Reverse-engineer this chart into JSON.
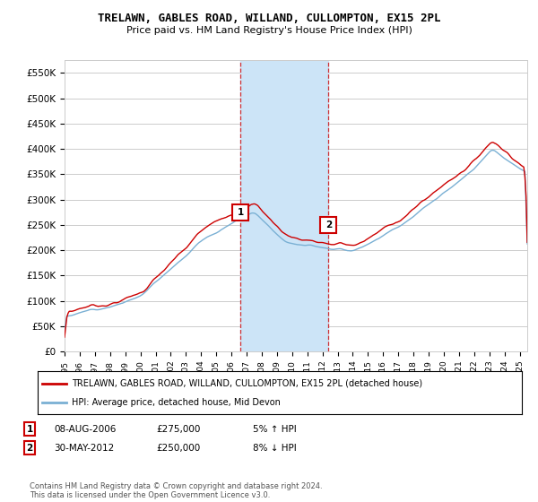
{
  "title": "TRELAWN, GABLES ROAD, WILLAND, CULLOMPTON, EX15 2PL",
  "subtitle": "Price paid vs. HM Land Registry's House Price Index (HPI)",
  "ylim": [
    0,
    575000
  ],
  "yticks": [
    0,
    50000,
    100000,
    150000,
    200000,
    250000,
    300000,
    350000,
    400000,
    450000,
    500000,
    550000
  ],
  "ytick_labels": [
    "£0",
    "£50K",
    "£100K",
    "£150K",
    "£200K",
    "£250K",
    "£300K",
    "£350K",
    "£400K",
    "£450K",
    "£500K",
    "£550K"
  ],
  "xlim_start": 1995.0,
  "xlim_end": 2025.5,
  "sale1_date": 2006.6,
  "sale1_price": 275000,
  "sale1_label": "1",
  "sale2_date": 2012.4,
  "sale2_price": 250000,
  "sale2_label": "2",
  "shade_color": "#cce4f7",
  "red_color": "#cc0000",
  "blue_color": "#7ab0d4",
  "grid_color": "#cccccc",
  "bg_color": "#ffffff",
  "legend_line1": "TRELAWN, GABLES ROAD, WILLAND, CULLOMPTON, EX15 2PL (detached house)",
  "legend_line2": "HPI: Average price, detached house, Mid Devon",
  "table_row1": [
    "1",
    "08-AUG-2006",
    "£275,000",
    "5% ↑ HPI"
  ],
  "table_row2": [
    "2",
    "30-MAY-2012",
    "£250,000",
    "8% ↓ HPI"
  ],
  "footer": "Contains HM Land Registry data © Crown copyright and database right 2024.\nThis data is licensed under the Open Government Licence v3.0."
}
